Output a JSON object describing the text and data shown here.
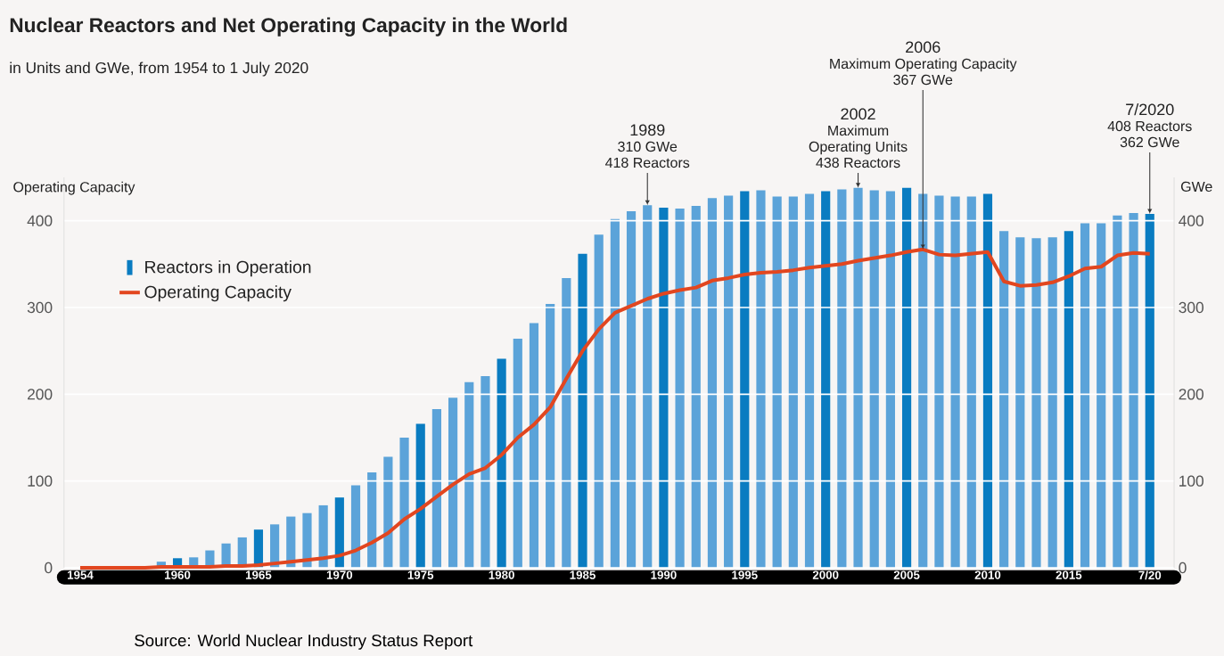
{
  "chart_data": {
    "type": "bar",
    "title": "Nuclear Reactors and Net Operating Capacity in the World",
    "subtitle": "in Units and GWe, from 1954 to 1 July 2020",
    "ylabel": "Operating Capacity",
    "y2label": "GWe",
    "x": [
      1954,
      1955,
      1956,
      1957,
      1958,
      1959,
      1960,
      1961,
      1962,
      1963,
      1964,
      1965,
      1966,
      1967,
      1968,
      1969,
      1970,
      1971,
      1972,
      1973,
      1974,
      1975,
      1976,
      1977,
      1978,
      1979,
      1980,
      1981,
      1982,
      1983,
      1984,
      1985,
      1986,
      1987,
      1988,
      1989,
      1990,
      1991,
      1992,
      1993,
      1994,
      1995,
      1996,
      1997,
      1998,
      1999,
      2000,
      2001,
      2002,
      2003,
      2004,
      2005,
      2006,
      2007,
      2008,
      2009,
      2010,
      2011,
      2012,
      2013,
      2014,
      2015,
      2016,
      2017,
      2018,
      2019,
      2020
    ],
    "xlim": [
      1953,
      2021.5
    ],
    "xticks": [
      1954,
      1960,
      1965,
      1970,
      1975,
      1980,
      1985,
      1990,
      1995,
      2000,
      2005,
      2010,
      2015,
      {
        "value": 2020,
        "label": "7/20"
      }
    ],
    "ylim": [
      0,
      450
    ],
    "yticks": [
      0,
      100,
      200,
      300,
      400
    ],
    "y2lim": [
      0,
      450
    ],
    "y2ticks": [
      0,
      100,
      200,
      300,
      400
    ],
    "grid": "y",
    "legend": "top left",
    "marker": "none",
    "line_style": "solid",
    "series": [
      {
        "name": "Reactors in Operation",
        "color": "#0a7cc1",
        "colors": [
          "#5ba3d9",
          "#5ba3d9",
          "#5ba3d9",
          "#5ba3d9",
          "#5ba3d9",
          "#5ba3d9",
          "#0a7cc1",
          "#5ba3d9",
          "#5ba3d9",
          "#5ba3d9",
          "#5ba3d9",
          "#0a7cc1",
          "#5ba3d9",
          "#5ba3d9",
          "#5ba3d9",
          "#5ba3d9",
          "#0a7cc1",
          "#5ba3d9",
          "#5ba3d9",
          "#5ba3d9",
          "#5ba3d9",
          "#0a7cc1",
          "#5ba3d9",
          "#5ba3d9",
          "#5ba3d9",
          "#5ba3d9",
          "#0a7cc1",
          "#5ba3d9",
          "#5ba3d9",
          "#5ba3d9",
          "#5ba3d9",
          "#0a7cc1",
          "#5ba3d9",
          "#5ba3d9",
          "#5ba3d9",
          "#5ba3d9",
          "#0a7cc1",
          "#5ba3d9",
          "#5ba3d9",
          "#5ba3d9",
          "#5ba3d9",
          "#0a7cc1",
          "#5ba3d9",
          "#5ba3d9",
          "#5ba3d9",
          "#5ba3d9",
          "#0a7cc1",
          "#5ba3d9",
          "#5ba3d9",
          "#5ba3d9",
          "#5ba3d9",
          "#0a7cc1",
          "#5ba3d9",
          "#5ba3d9",
          "#5ba3d9",
          "#5ba3d9",
          "#0a7cc1",
          "#5ba3d9",
          "#5ba3d9",
          "#5ba3d9",
          "#5ba3d9",
          "#0a7cc1",
          "#5ba3d9",
          "#5ba3d9",
          "#5ba3d9",
          "#5ba3d9",
          "#0a7cc1"
        ],
        "values": [
          null,
          null,
          null,
          null,
          null,
          7,
          11,
          12,
          20,
          28,
          35,
          44,
          50,
          59,
          63,
          72,
          81,
          95,
          110,
          128,
          150,
          166,
          183,
          196,
          214,
          221,
          241,
          264,
          282,
          304,
          334,
          362,
          384,
          402,
          411,
          418,
          415,
          414,
          417,
          426,
          429,
          434,
          435,
          428,
          428,
          431,
          434,
          436,
          438,
          435,
          434,
          438,
          431,
          429,
          428,
          428,
          431,
          388,
          381,
          380,
          381,
          388,
          397,
          397,
          406,
          409,
          408
        ]
      },
      {
        "name": "Operating Capacity",
        "type": "line",
        "axis": "y2",
        "color": "#e2461f",
        "values": [
          0,
          0,
          0,
          0,
          0,
          1,
          1,
          1,
          1,
          2,
          2,
          3,
          5,
          7,
          9,
          11,
          14,
          20,
          29,
          40,
          56,
          68,
          82,
          96,
          108,
          115,
          130,
          150,
          165,
          185,
          218,
          250,
          275,
          294,
          302,
          310,
          316,
          320,
          323,
          331,
          334,
          338,
          340,
          341,
          343,
          346,
          348,
          350,
          354,
          357,
          360,
          364,
          367,
          361,
          360,
          362,
          364,
          330,
          325,
          326,
          329,
          336,
          345,
          347,
          360,
          363,
          362
        ]
      }
    ],
    "annotations": [
      "1989",
      "310 GWe",
      {
        "text": "418 Reactors",
        "x": 1989,
        "y": 418
      },
      "2002",
      "Maximum",
      "Operating Units",
      {
        "text": "438 Reactors",
        "x": 2002,
        "y": 438
      },
      "2006",
      "Maximum Operating Capacity",
      {
        "text": "367 GWe",
        "x": 2006,
        "y": 367
      },
      "7/2020",
      "408 Reactors",
      {
        "text": "362 GWe",
        "x": 2020,
        "y": 408
      },
      "Source: World Nuclear Industry Status Report"
    ]
  }
}
